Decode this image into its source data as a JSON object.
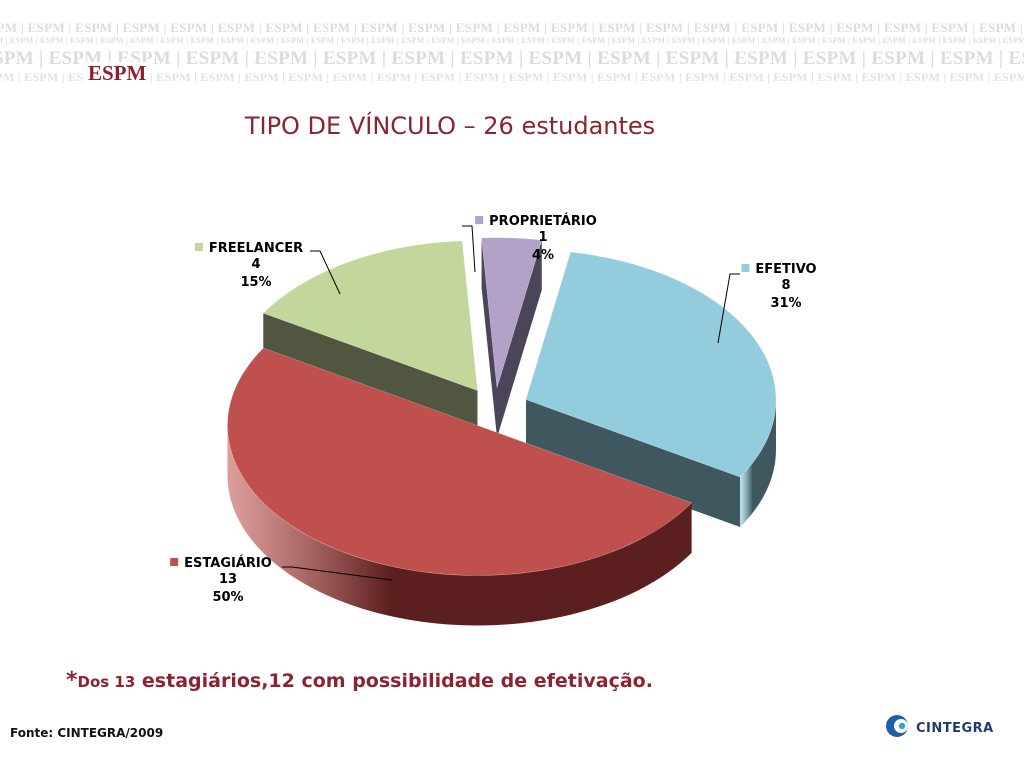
{
  "header": {
    "brand": "ESPM",
    "watermark_text": "ESPM"
  },
  "title": "TIPO DE VÍNCULO – 26 estudantes",
  "chart_data": {
    "type": "pie",
    "style": "3d-exploded",
    "total": 26,
    "slices": [
      {
        "name": "EFETIVO",
        "value": 8,
        "percent": "31%",
        "color": "#93cddd",
        "side_color": "#3f5860"
      },
      {
        "name": "ESTAGIÁRIO",
        "value": 13,
        "percent": "50%",
        "color": "#c0504d",
        "side_color": "#5a1f1e"
      },
      {
        "name": "FREELANCER",
        "value": 4,
        "percent": "15%",
        "color": "#c3d69b",
        "side_color": "#515640"
      },
      {
        "name": "PROPRIETÁRIO",
        "value": 1,
        "percent": "4%",
        "color": "#b2a2c7",
        "side_color": "#4c4459"
      }
    ]
  },
  "footnote": {
    "star": "*",
    "part1": "Dos 13",
    "part2": " estagiários,12 com possibilidade de efetivação."
  },
  "source": "Fonte: CINTEGRA/2009",
  "footer_logo": {
    "name": "CINTEGRA"
  }
}
